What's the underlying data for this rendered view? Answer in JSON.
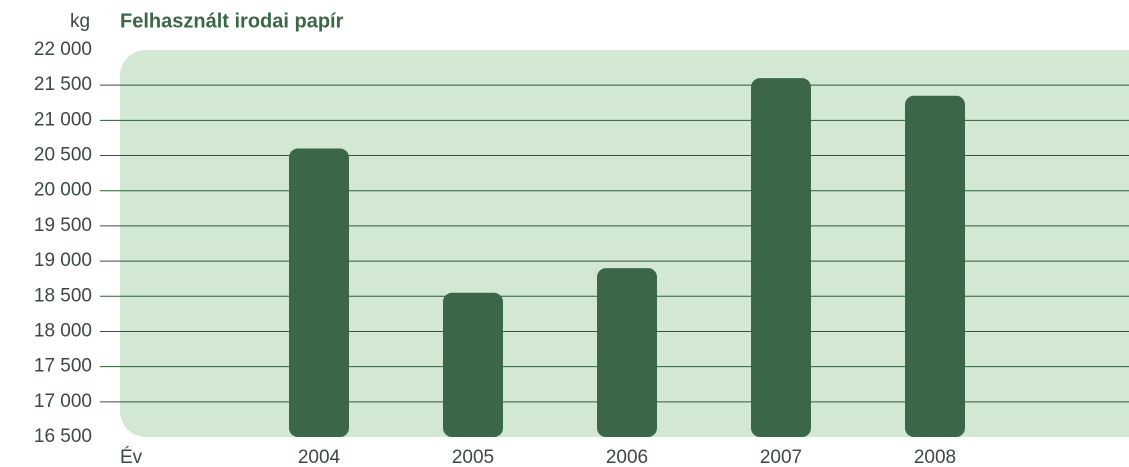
{
  "chart_data": {
    "type": "bar",
    "title": "Felhasznált irodai papír",
    "y_label": "kg",
    "x_label": "Év",
    "categories": [
      "2004",
      "2005",
      "2006",
      "2007",
      "2008"
    ],
    "values": [
      20600,
      18550,
      18900,
      21600,
      21350
    ],
    "color": "#3b6647",
    "ylim": [
      16500,
      22000
    ],
    "yticks": [
      {
        "value": 16500,
        "label": "16 500"
      },
      {
        "value": 17000,
        "label": "17 000"
      },
      {
        "value": 17500,
        "label": "17 500"
      },
      {
        "value": 18000,
        "label": "18 000"
      },
      {
        "value": 18500,
        "label": "18 500"
      },
      {
        "value": 19000,
        "label": "19 000"
      },
      {
        "value": 19500,
        "label": "19 500"
      },
      {
        "value": 20000,
        "label": "20 000"
      },
      {
        "value": 20500,
        "label": "20 500"
      },
      {
        "value": 21000,
        "label": "21 000"
      },
      {
        "value": 21500,
        "label": "21 500"
      },
      {
        "value": 22000,
        "label": "22 000"
      }
    ],
    "grid": true
  }
}
